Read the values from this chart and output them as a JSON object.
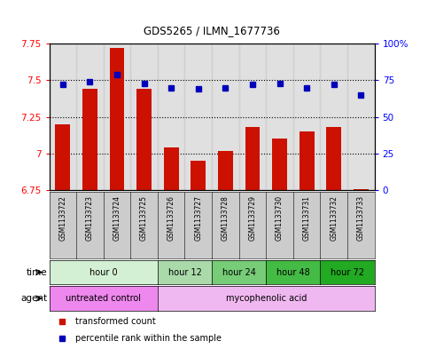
{
  "title": "GDS5265 / ILMN_1677736",
  "samples": [
    "GSM1133722",
    "GSM1133723",
    "GSM1133724",
    "GSM1133725",
    "GSM1133726",
    "GSM1133727",
    "GSM1133728",
    "GSM1133729",
    "GSM1133730",
    "GSM1133731",
    "GSM1133732",
    "GSM1133733"
  ],
  "bar_values": [
    7.2,
    7.44,
    7.72,
    7.44,
    7.04,
    6.95,
    7.02,
    7.18,
    7.1,
    7.15,
    7.18,
    6.76
  ],
  "percentile_values": [
    72,
    74,
    79,
    73,
    70,
    69,
    70,
    72,
    73,
    70,
    72,
    65
  ],
  "bar_color": "#cc1100",
  "dot_color": "#0000bb",
  "ylim_left": [
    6.75,
    7.75
  ],
  "ylim_right": [
    0,
    100
  ],
  "yticks_left": [
    6.75,
    7.0,
    7.25,
    7.5,
    7.75
  ],
  "ytick_labels_left": [
    "6.75",
    "7",
    "7.25",
    "7.5",
    "7.75"
  ],
  "yticks_right": [
    0,
    25,
    50,
    75,
    100
  ],
  "ytick_labels_right": [
    "0",
    "25",
    "50",
    "75",
    "100%"
  ],
  "hlines": [
    7.0,
    7.25,
    7.5
  ],
  "time_groups": [
    {
      "label": "hour 0",
      "start": 0,
      "end": 4,
      "color": "#d4f0d4"
    },
    {
      "label": "hour 12",
      "start": 4,
      "end": 6,
      "color": "#aadaaa"
    },
    {
      "label": "hour 24",
      "start": 6,
      "end": 8,
      "color": "#77cc77"
    },
    {
      "label": "hour 48",
      "start": 8,
      "end": 10,
      "color": "#44bb44"
    },
    {
      "label": "hour 72",
      "start": 10,
      "end": 12,
      "color": "#22aa22"
    }
  ],
  "agent_groups": [
    {
      "label": "untreated control",
      "start": 0,
      "end": 4,
      "color": "#ee88ee"
    },
    {
      "label": "mycophenolic acid",
      "start": 4,
      "end": 12,
      "color": "#f0b8f0"
    }
  ],
  "legend_bar_label": "transformed count",
  "legend_dot_label": "percentile rank within the sample",
  "bar_width": 0.55,
  "sample_col_color": "#cccccc",
  "time_row_label": "time",
  "agent_row_label": "agent"
}
